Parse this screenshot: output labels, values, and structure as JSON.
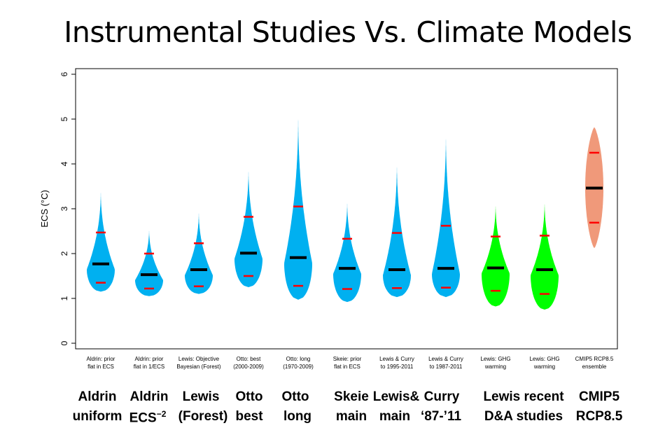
{
  "title": "Instrumental Studies Vs. Climate Models",
  "chart_data": {
    "type": "violin",
    "title": "Instrumental Studies Vs. Climate Models",
    "ylabel": "ECS (°C)",
    "ylim": [
      0,
      6
    ],
    "yticks": [
      "0",
      "1",
      "2",
      "3",
      "4",
      "5",
      "6"
    ],
    "colors": {
      "blue": "#00b0f0",
      "green": "#00ff00",
      "salmon": "#f0997a",
      "median": "#000000",
      "percentile": "#ff0000"
    },
    "series": [
      {
        "label": [
          "Aldrin: prior",
          "flat in ECS"
        ],
        "color": "blue",
        "min": 1.15,
        "max": 3.42,
        "median": 1.77,
        "p5": 1.35,
        "p95": 2.47
      },
      {
        "label": [
          "Aldrin: prior",
          "flat in 1/ECS"
        ],
        "color": "blue",
        "min": 1.05,
        "max": 2.55,
        "median": 1.53,
        "p5": 1.22,
        "p95": 2.0
      },
      {
        "label": [
          "Lewis: Objective",
          "Bayesian (Forest)"
        ],
        "color": "blue",
        "min": 1.1,
        "max": 2.95,
        "median": 1.64,
        "p5": 1.27,
        "p95": 2.23
      },
      {
        "label": [
          "Otto: best",
          "(2000-2009)"
        ],
        "color": "blue",
        "min": 1.25,
        "max": 3.9,
        "median": 2.01,
        "p5": 1.5,
        "p95": 2.82
      },
      {
        "label": [
          "Otto: long",
          "(1970-2009)"
        ],
        "color": "blue",
        "min": 0.97,
        "max": 5.1,
        "median": 1.91,
        "p5": 1.28,
        "p95": 3.05
      },
      {
        "label": [
          "Skeie: prior",
          "flat in ECS"
        ],
        "color": "blue",
        "min": 0.92,
        "max": 3.18,
        "median": 1.67,
        "p5": 1.21,
        "p95": 2.33
      },
      {
        "label": [
          "Lewis & Curry",
          "to 1995-2011"
        ],
        "color": "blue",
        "min": 1.03,
        "max": 4.05,
        "median": 1.64,
        "p5": 1.23,
        "p95": 2.46
      },
      {
        "label": [
          "Lewis & Curry",
          "to 1987-2011"
        ],
        "color": "blue",
        "min": 1.03,
        "max": 4.7,
        "median": 1.67,
        "p5": 1.24,
        "p95": 2.62
      },
      {
        "label": [
          "Lewis: GHG",
          "warming"
        ],
        "color": "green",
        "min": 0.82,
        "max": 3.12,
        "median": 1.68,
        "p5": 1.17,
        "p95": 2.38
      },
      {
        "label": [
          "Lewis: GHG",
          "warming"
        ],
        "color": "green",
        "min": 0.75,
        "max": 3.17,
        "median": 1.64,
        "p5": 1.1,
        "p95": 2.4
      },
      {
        "label": [
          "CMIP5 RCP8.5",
          "ensemble"
        ],
        "color": "salmon",
        "min": 2.12,
        "max": 4.82,
        "median": 3.46,
        "p5": 2.69,
        "p95": 4.25,
        "symmetric": true
      }
    ]
  },
  "bottom_labels": {
    "row1": [
      "Aldrin",
      "Aldrin",
      "Lewis",
      "Otto",
      "Otto",
      "Skeie",
      "Lewis&",
      "Curry",
      "Lewis recent",
      "CMIP5"
    ],
    "row2": [
      "uniform",
      "ECS",
      "(Forest)",
      "best",
      "long",
      "main",
      "main",
      "‘87-’11",
      "D&A studies",
      "RCP8.5"
    ],
    "ecs_exponent": "−2"
  }
}
